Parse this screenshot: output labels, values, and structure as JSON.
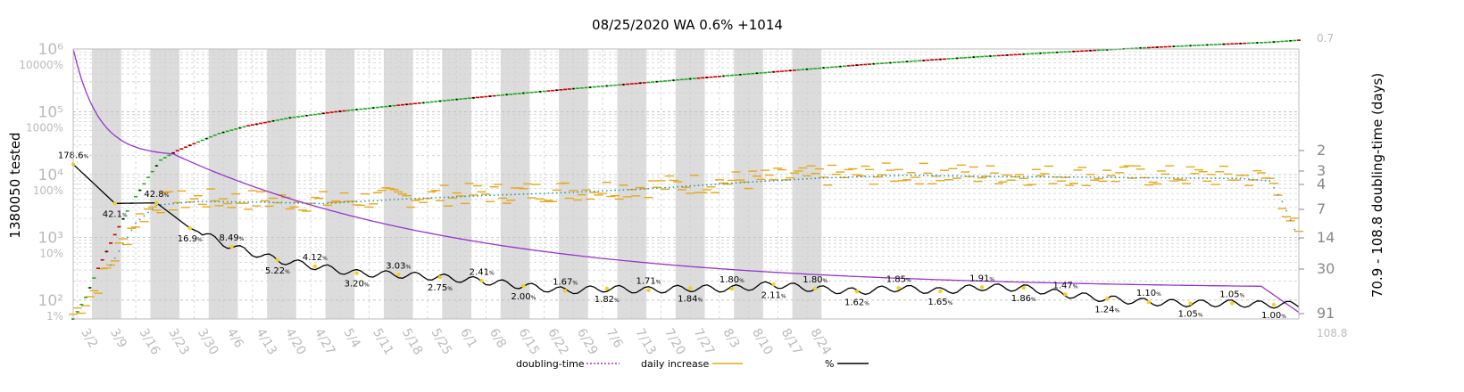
{
  "chart_data": {
    "type": "line",
    "title": "08/25/2020 WA 0.6% +1014",
    "ylabel": "1380050 tested",
    "ylabel_right": "70.9 - 108.8 doubling-time (days)",
    "y_scale": "log",
    "ylim": [
      50,
      1000000
    ],
    "x_tick_labels": [
      "3/2",
      "3/9",
      "3/16",
      "3/23",
      "3/30",
      "4/6",
      "4/13",
      "4/20",
      "4/27",
      "5/4",
      "5/11",
      "5/18",
      "5/25",
      "6/1",
      "6/8",
      "6/15",
      "6/22",
      "6/29",
      "7/6",
      "7/13",
      "7/20",
      "7/27",
      "8/3",
      "8/10",
      "8/17",
      "8/24"
    ],
    "y_tick_labels": [
      "10²",
      "10³",
      "10⁴",
      "10⁵",
      "10⁶"
    ],
    "pct_tick_labels": [
      "1%",
      "10%",
      "100%",
      "1000%",
      "10000%"
    ],
    "right_tick_labels": [
      "0.7",
      "2",
      "3",
      "4",
      "7",
      "14",
      "30",
      "91",
      "108.8"
    ],
    "grid": true,
    "legend_position": "bottom",
    "legend": [
      {
        "name": "doubling-time",
        "color": "#9933cc",
        "style": "dotted"
      },
      {
        "name": "daily increase",
        "color": "#e6a817",
        "style": "solid"
      },
      {
        "name": "%",
        "color": "#000000",
        "style": "solid"
      }
    ],
    "colors": {
      "doubling": "#9933cc",
      "daily": "#e6a817",
      "pct": "#000000",
      "cum_up": "#22aa22",
      "cum_down": "#cc0000",
      "band": "#dcdcdc",
      "dots": "#3399aa"
    },
    "pct_labels": [
      {
        "x": 0,
        "v": "178.6"
      },
      {
        "x": 10,
        "v": "42.1"
      },
      {
        "x": 20,
        "v": "42.8"
      },
      {
        "x": 28,
        "v": "16.9"
      },
      {
        "x": 38,
        "v": "8.49"
      },
      {
        "x": 49,
        "v": "5.22"
      },
      {
        "x": 58,
        "v": "4.12"
      },
      {
        "x": 68,
        "v": "3.20"
      },
      {
        "x": 78,
        "v": "3.03"
      },
      {
        "x": 88,
        "v": "2.75"
      },
      {
        "x": 98,
        "v": "2.41"
      },
      {
        "x": 108,
        "v": "2.00"
      },
      {
        "x": 118,
        "v": "1.67"
      },
      {
        "x": 128,
        "v": "1.82"
      },
      {
        "x": 138,
        "v": "1.71"
      },
      {
        "x": 148,
        "v": "1.84"
      },
      {
        "x": 158,
        "v": "1.80"
      },
      {
        "x": 168,
        "v": "2.11"
      },
      {
        "x": 178,
        "v": "1.80"
      },
      {
        "x": 188,
        "v": "1.62"
      },
      {
        "x": 198,
        "v": "1.85"
      },
      {
        "x": 208,
        "v": "1.65"
      },
      {
        "x": 218,
        "v": "1.91"
      },
      {
        "x": 228,
        "v": "1.86"
      },
      {
        "x": 238,
        "v": "1.47"
      },
      {
        "x": 248,
        "v": "1.24"
      },
      {
        "x": 258,
        "v": "1.10"
      },
      {
        "x": 268,
        "v": "1.05"
      },
      {
        "x": 278,
        "v": "1.05"
      },
      {
        "x": 288,
        "v": "1.00"
      }
    ],
    "cumulative_samples": [
      {
        "x": 0,
        "y": 50
      },
      {
        "x": 3,
        "y": 110
      },
      {
        "x": 6,
        "y": 320
      },
      {
        "x": 10,
        "y": 1100
      },
      {
        "x": 14,
        "y": 3500
      },
      {
        "x": 18,
        "y": 9000
      },
      {
        "x": 21,
        "y": 17000
      },
      {
        "x": 25,
        "y": 24000
      },
      {
        "x": 30,
        "y": 33000
      },
      {
        "x": 35,
        "y": 45000
      },
      {
        "x": 42,
        "y": 60000
      },
      {
        "x": 52,
        "y": 80000
      },
      {
        "x": 63,
        "y": 100000
      },
      {
        "x": 77,
        "y": 125000
      },
      {
        "x": 91,
        "y": 155000
      },
      {
        "x": 105,
        "y": 190000
      },
      {
        "x": 119,
        "y": 230000
      },
      {
        "x": 133,
        "y": 275000
      },
      {
        "x": 147,
        "y": 330000
      },
      {
        "x": 161,
        "y": 395000
      },
      {
        "x": 175,
        "y": 470000
      },
      {
        "x": 189,
        "y": 560000
      },
      {
        "x": 203,
        "y": 650000
      },
      {
        "x": 217,
        "y": 750000
      },
      {
        "x": 231,
        "y": 850000
      },
      {
        "x": 245,
        "y": 950000
      },
      {
        "x": 259,
        "y": 1060000
      },
      {
        "x": 273,
        "y": 1170000
      },
      {
        "x": 287,
        "y": 1280000
      },
      {
        "x": 294,
        "y": 1380050
      }
    ],
    "daily_increase_samples": [
      {
        "x": 0,
        "y": 60
      },
      {
        "x": 5,
        "y": 140
      },
      {
        "x": 10,
        "y": 500
      },
      {
        "x": 15,
        "y": 1800
      },
      {
        "x": 20,
        "y": 3500
      },
      {
        "x": 30,
        "y": 4000
      },
      {
        "x": 45,
        "y": 3900
      },
      {
        "x": 60,
        "y": 3700
      },
      {
        "x": 80,
        "y": 4400
      },
      {
        "x": 100,
        "y": 5000
      },
      {
        "x": 120,
        "y": 5600
      },
      {
        "x": 140,
        "y": 6500
      },
      {
        "x": 160,
        "y": 8000
      },
      {
        "x": 180,
        "y": 9500
      },
      {
        "x": 200,
        "y": 10500
      },
      {
        "x": 220,
        "y": 10000
      },
      {
        "x": 240,
        "y": 9800
      },
      {
        "x": 260,
        "y": 9500
      },
      {
        "x": 280,
        "y": 9300
      },
      {
        "x": 287,
        "y": 8500
      },
      {
        "x": 290,
        "y": 4000
      },
      {
        "x": 294,
        "y": 1014
      }
    ]
  }
}
